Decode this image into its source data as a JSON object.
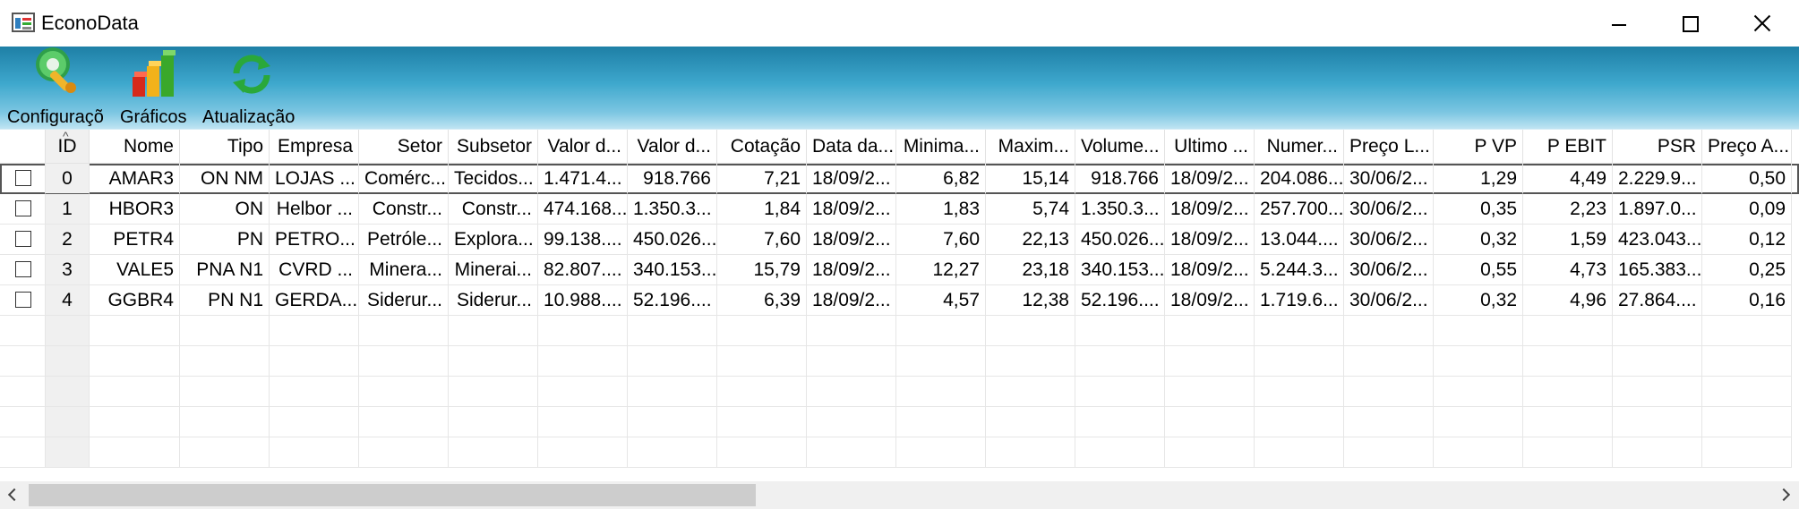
{
  "window": {
    "title": "EconoData"
  },
  "toolbar": {
    "items": [
      {
        "label": "Configurações",
        "icon": "wrench-gear-icon"
      },
      {
        "label": "Gráficos",
        "icon": "bar-chart-icon"
      },
      {
        "label": "Atualização",
        "icon": "refresh-icon"
      }
    ]
  },
  "grid": {
    "columns": [
      "ID",
      "Nome",
      "Tipo",
      "Empresa",
      "Setor",
      "Subsetor",
      "Valor d...",
      "Valor d...",
      "Cotação",
      "Data da...",
      "Minima...",
      "Maxim...",
      "Volume...",
      "Ultimo ...",
      "Numer...",
      "Preço L...",
      "P VP",
      "P EBIT",
      "PSR",
      "Preço A..."
    ],
    "rows": [
      [
        "0",
        "AMAR3",
        "ON NM",
        "LOJAS ...",
        "Comérc...",
        "Tecidos...",
        "1.471.4...",
        "918.766",
        "7,21",
        "18/09/2...",
        "6,82",
        "15,14",
        "918.766",
        "18/09/2...",
        "204.086...",
        "30/06/2...",
        "1,29",
        "4,49",
        "2.229.9...",
        "0,50"
      ],
      [
        "1",
        "HBOR3",
        "ON",
        "Helbor ...",
        "Constr...",
        "Constr...",
        "474.168...",
        "1.350.3...",
        "1,84",
        "18/09/2...",
        "1,83",
        "5,74",
        "1.350.3...",
        "18/09/2...",
        "257.700...",
        "30/06/2...",
        "0,35",
        "2,23",
        "1.897.0...",
        "0,09"
      ],
      [
        "2",
        "PETR4",
        "PN",
        "PETRO...",
        "Petróle...",
        "Explora...",
        "99.138....",
        "450.026...",
        "7,60",
        "18/09/2...",
        "7,60",
        "22,13",
        "450.026...",
        "18/09/2...",
        "13.044....",
        "30/06/2...",
        "0,32",
        "1,59",
        "423.043...",
        "0,12"
      ],
      [
        "3",
        "VALE5",
        "PNA N1",
        "CVRD ...",
        "Minera...",
        "Minerai...",
        "82.807....",
        "340.153...",
        "15,79",
        "18/09/2...",
        "12,27",
        "23,18",
        "340.153...",
        "18/09/2...",
        "5.244.3...",
        "30/06/2...",
        "0,55",
        "4,73",
        "165.383...",
        "0,25"
      ],
      [
        "4",
        "GGBR4",
        "PN N1",
        "GERDA...",
        "Siderur...",
        "Siderur...",
        "10.988....",
        "52.196....",
        "6,39",
        "18/09/2...",
        "4,57",
        "12,38",
        "52.196....",
        "18/09/2...",
        "1.719.6...",
        "30/06/2...",
        "0,32",
        "4,96",
        "27.864....",
        "0,16"
      ]
    ],
    "selected_row": 0
  },
  "colors": {
    "toolbar_top": "#1e7fa6",
    "toolbar_bottom": "#bfe4f2",
    "scroll_thumb": "#cdcdcd"
  }
}
